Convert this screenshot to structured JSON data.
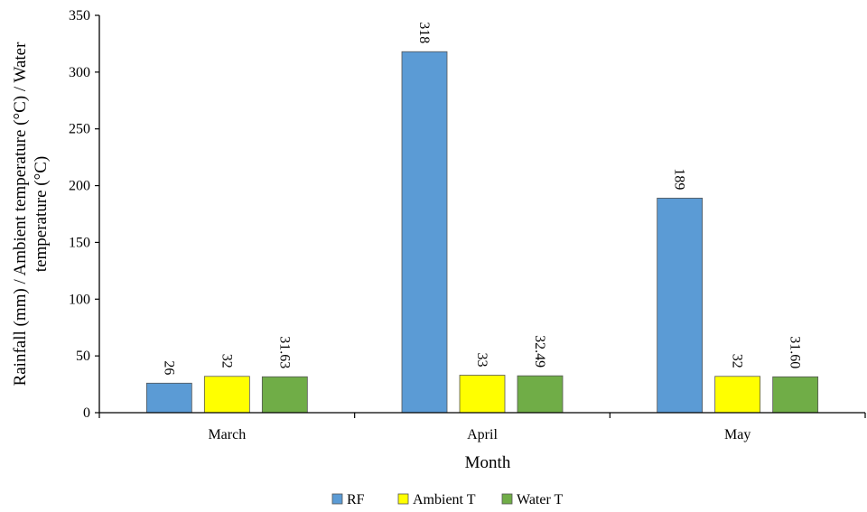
{
  "chart_data": {
    "type": "bar",
    "title": "",
    "xlabel": "Month",
    "ylabel_line1": "Rainfall (mm) / Ambient temperature (°C) / Water",
    "ylabel_line2": "temperature (°C)",
    "categories": [
      "March",
      "April",
      "May"
    ],
    "ylim": [
      0,
      350
    ],
    "yticks": [
      0,
      50,
      100,
      150,
      200,
      250,
      300,
      350
    ],
    "grid": false,
    "legend_position": "bottom",
    "series": [
      {
        "name": "RF",
        "color": "#5b9bd5",
        "values": [
          26,
          318,
          189
        ],
        "labels": [
          "26",
          "318",
          "189"
        ]
      },
      {
        "name": "Ambient T",
        "color": "#ffff00",
        "values": [
          32,
          33,
          32
        ],
        "labels": [
          "32",
          "33",
          "32"
        ]
      },
      {
        "name": "Water T",
        "color": "#70ad47",
        "values": [
          31.63,
          32.49,
          31.6
        ],
        "labels": [
          "31.63",
          "32.49",
          "31.60"
        ]
      }
    ]
  }
}
